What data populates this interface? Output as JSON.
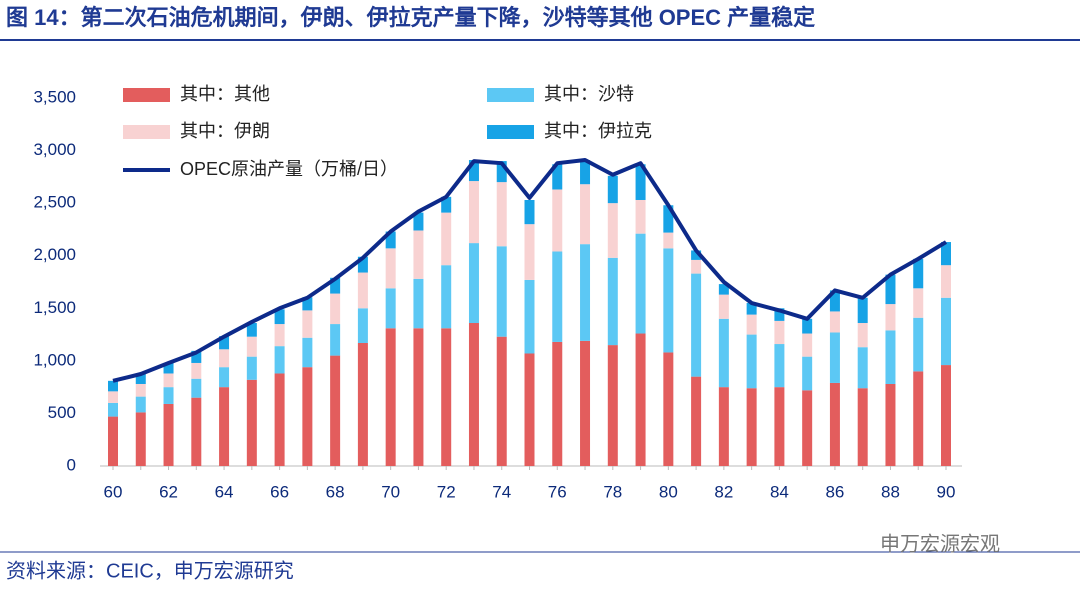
{
  "chart_data": {
    "type": "bar",
    "title": "图 14：第二次石油危机期间，伊朗、伊拉克产量下降，沙特等其他 OPEC 产量稳定",
    "source": "资料来源：CEIC，申万宏源研究",
    "watermark": "申万宏源宏观",
    "stacked": true,
    "categories": [
      "60",
      null,
      "62",
      null,
      "64",
      null,
      "66",
      null,
      "68",
      null,
      "70",
      null,
      "72",
      null,
      "74",
      null,
      "76",
      null,
      "78",
      null,
      "80",
      null,
      "82",
      null,
      "84",
      null,
      "86",
      null,
      "88",
      null,
      "90"
    ],
    "series": [
      {
        "name": "其中：其他",
        "type": "bar",
        "color": "#e35d5d",
        "values": [
          470,
          510,
          590,
          650,
          750,
          820,
          880,
          940,
          1050,
          1170,
          1310,
          1310,
          1310,
          1360,
          1230,
          1070,
          1180,
          1190,
          1150,
          1260,
          1080,
          850,
          750,
          740,
          750,
          720,
          790,
          740,
          780,
          900,
          960
        ]
      },
      {
        "name": "其中：沙特",
        "type": "bar",
        "color": "#5cc8f4",
        "values": [
          130,
          150,
          160,
          180,
          190,
          220,
          260,
          280,
          300,
          330,
          380,
          470,
          600,
          760,
          860,
          700,
          860,
          920,
          830,
          950,
          990,
          980,
          650,
          510,
          410,
          320,
          480,
          390,
          510,
          510,
          640
        ]
      },
      {
        "name": "其中：伊朗",
        "type": "bar",
        "color": "#f8d2d2",
        "values": [
          110,
          120,
          130,
          150,
          170,
          190,
          210,
          260,
          290,
          340,
          380,
          460,
          500,
          590,
          610,
          530,
          590,
          570,
          520,
          320,
          150,
          130,
          230,
          190,
          220,
          220,
          200,
          230,
          250,
          280,
          310
        ]
      },
      {
        "name": "其中：伊拉克",
        "type": "bar",
        "color": "#17a3e6",
        "values": [
          100,
          95,
          100,
          115,
          125,
          130,
          140,
          125,
          150,
          150,
          160,
          170,
          150,
          200,
          200,
          230,
          240,
          230,
          260,
          340,
          260,
          90,
          100,
          110,
          120,
          140,
          200,
          240,
          280,
          280,
          220
        ]
      },
      {
        "name": "OPEC原油产量（万桶/日）",
        "type": "line",
        "color": "#0d2a8a",
        "values": [
          810,
          875,
          980,
          1080,
          1230,
          1370,
          1500,
          1600,
          1780,
          1980,
          2230,
          2420,
          2560,
          2900,
          2880,
          2550,
          2880,
          2910,
          2770,
          2880,
          2480,
          2050,
          1750,
          1550,
          1480,
          1400,
          1670,
          1600,
          1820,
          1970,
          2130
        ]
      }
    ],
    "ylim": [
      0,
      3500
    ],
    "yticks": [
      0,
      500,
      {
        "value": 1000,
        "label": "1,000"
      },
      {
        "value": 1500,
        "label": "1,500"
      },
      {
        "value": 2000,
        "label": "2,000"
      },
      {
        "value": 2500,
        "label": "2,500"
      },
      {
        "value": 3000,
        "label": "3,000"
      },
      {
        "value": 3500,
        "label": "3,500"
      }
    ],
    "grid": false
  }
}
